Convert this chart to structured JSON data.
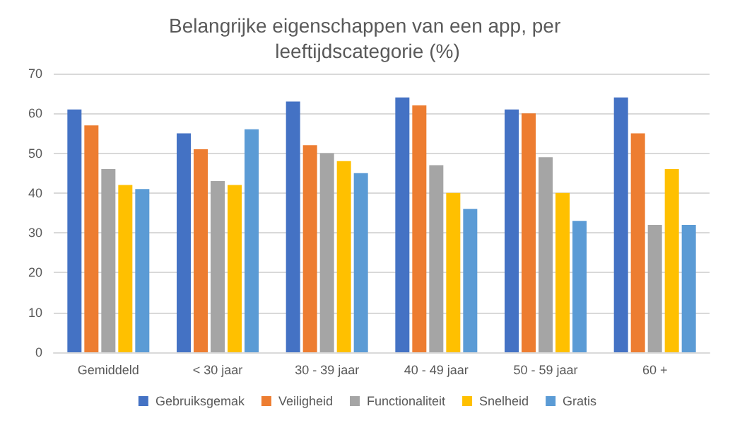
{
  "chart_data": {
    "type": "bar",
    "title": "Belangrijke eigenschappen van een app, per leeftijdscategorie (%)",
    "categories": [
      "Gemiddeld",
      "< 30 jaar",
      "30 - 39 jaar",
      "40 - 49 jaar",
      "50 - 59 jaar",
      "60 +"
    ],
    "series": [
      {
        "name": "Gebruiksgemak",
        "color": "#4472c4",
        "values": [
          61,
          55,
          63,
          64,
          61,
          64
        ]
      },
      {
        "name": "Veiligheid",
        "color": "#ed7d31",
        "values": [
          57,
          51,
          52,
          62,
          60,
          55
        ]
      },
      {
        "name": "Functionaliteit",
        "color": "#a5a5a5",
        "values": [
          46,
          43,
          50,
          47,
          49,
          32
        ]
      },
      {
        "name": "Snelheid",
        "color": "#ffc000",
        "values": [
          42,
          42,
          48,
          40,
          40,
          46
        ]
      },
      {
        "name": "Gratis",
        "color": "#5b9bd5",
        "values": [
          41,
          56,
          45,
          36,
          33,
          32
        ]
      }
    ],
    "ylim": [
      0,
      70
    ],
    "yticks": [
      0,
      10,
      20,
      30,
      40,
      50,
      60,
      70
    ],
    "grid": "y",
    "legend": "bottom"
  }
}
